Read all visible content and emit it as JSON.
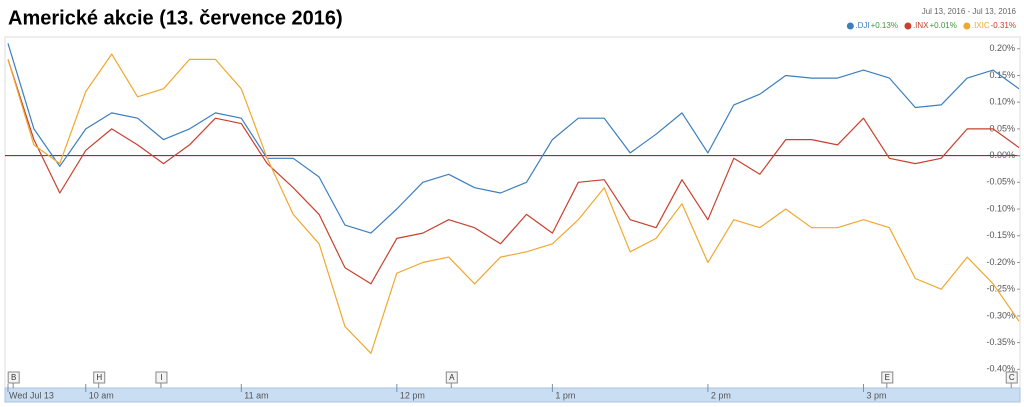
{
  "chart_data": {
    "type": "line",
    "title": "Americké akcie (13. července 2016)",
    "date_range": "Jul 13, 2016  -  Jul 13, 2016",
    "x": [
      570,
      580,
      590,
      600,
      610,
      620,
      630,
      640,
      650,
      660,
      670,
      680,
      690,
      700,
      710,
      720,
      730,
      740,
      750,
      760,
      770,
      780,
      790,
      800,
      810,
      820,
      830,
      840,
      850,
      860,
      870,
      880,
      890,
      900,
      910,
      920,
      930,
      940,
      950,
      960
    ],
    "xlim": [
      570,
      960
    ],
    "xticks": [
      {
        "value": 570,
        "label": "Wed Jul 13"
      },
      {
        "value": 600,
        "label": "10 am"
      },
      {
        "value": 660,
        "label": "11 am"
      },
      {
        "value": 720,
        "label": "12 pm"
      },
      {
        "value": 780,
        "label": "1 pm"
      },
      {
        "value": 840,
        "label": "2 pm"
      },
      {
        "value": 900,
        "label": "3 pm"
      }
    ],
    "ylim": [
      -0.405,
      0.222
    ],
    "yticks": [
      {
        "value": 0.2,
        "label": "0.20%"
      },
      {
        "value": 0.15,
        "label": "0.15%"
      },
      {
        "value": 0.1,
        "label": "0.10%"
      },
      {
        "value": 0.05,
        "label": "0.05%"
      },
      {
        "value": 0,
        "label": "-0.00%"
      },
      {
        "value": -0.05,
        "label": "-0.05%"
      },
      {
        "value": -0.1,
        "label": "-0.10%"
      },
      {
        "value": -0.15,
        "label": "-0.15%"
      },
      {
        "value": -0.2,
        "label": "-0.20%"
      },
      {
        "value": -0.25,
        "label": "-0.25%"
      },
      {
        "value": -0.3,
        "label": "-0.30%"
      },
      {
        "value": -0.35,
        "label": "-0.35%"
      },
      {
        "value": -0.4,
        "label": "-0.40%"
      }
    ],
    "series": [
      {
        "name": ".DJI",
        "change": "+0.13%",
        "change_color": "#3a9a3a",
        "color": "#3d7ebf",
        "values": [
          0.21,
          0.05,
          -0.02,
          0.05,
          0.08,
          0.07,
          0.03,
          0.05,
          0.08,
          0.07,
          -0.005,
          -0.005,
          -0.04,
          -0.13,
          -0.145,
          -0.1,
          -0.05,
          -0.035,
          -0.06,
          -0.07,
          -0.05,
          0.03,
          0.07,
          0.07,
          0.005,
          0.04,
          0.08,
          0.005,
          0.095,
          0.115,
          0.15,
          0.145,
          0.145,
          0.16,
          0.145,
          0.09,
          0.095,
          0.145,
          0.16,
          0.125
        ]
      },
      {
        "name": ".INX",
        "change": "+0.01%",
        "change_color": "#3a9a3a",
        "color": "#c8402e",
        "values": [
          0.18,
          0.03,
          -0.07,
          0.01,
          0.05,
          0.02,
          -0.015,
          0.02,
          0.07,
          0.06,
          -0.015,
          -0.06,
          -0.11,
          -0.21,
          -0.24,
          -0.155,
          -0.145,
          -0.12,
          -0.135,
          -0.165,
          -0.11,
          -0.145,
          -0.05,
          -0.045,
          -0.12,
          -0.135,
          -0.045,
          -0.12,
          -0.005,
          -0.035,
          0.03,
          0.03,
          0.02,
          0.07,
          -0.005,
          -0.015,
          -0.005,
          0.05,
          0.05,
          0.015
        ]
      },
      {
        "name": ".IXIC",
        "change": "-0.31%",
        "change_color": "#d03a2a",
        "color": "#f0a830",
        "values": [
          0.18,
          0.02,
          -0.015,
          0.12,
          0.19,
          0.11,
          0.125,
          0.18,
          0.18,
          0.125,
          -0.005,
          -0.11,
          -0.165,
          -0.32,
          -0.37,
          -0.22,
          -0.2,
          -0.19,
          -0.24,
          -0.19,
          -0.18,
          -0.165,
          -0.12,
          -0.06,
          -0.18,
          -0.155,
          -0.09,
          -0.2,
          -0.12,
          -0.135,
          -0.1,
          -0.135,
          -0.135,
          -0.12,
          -0.135,
          -0.23,
          -0.25,
          -0.19,
          -0.24,
          -0.31
        ]
      }
    ],
    "annotations": [
      {
        "x": 572,
        "label": "B"
      },
      {
        "x": 605,
        "label": "H"
      },
      {
        "x": 629,
        "label": "I"
      },
      {
        "x": 741,
        "label": "A"
      },
      {
        "x": 909,
        "label": "E"
      },
      {
        "x": 957,
        "label": "C"
      }
    ]
  }
}
